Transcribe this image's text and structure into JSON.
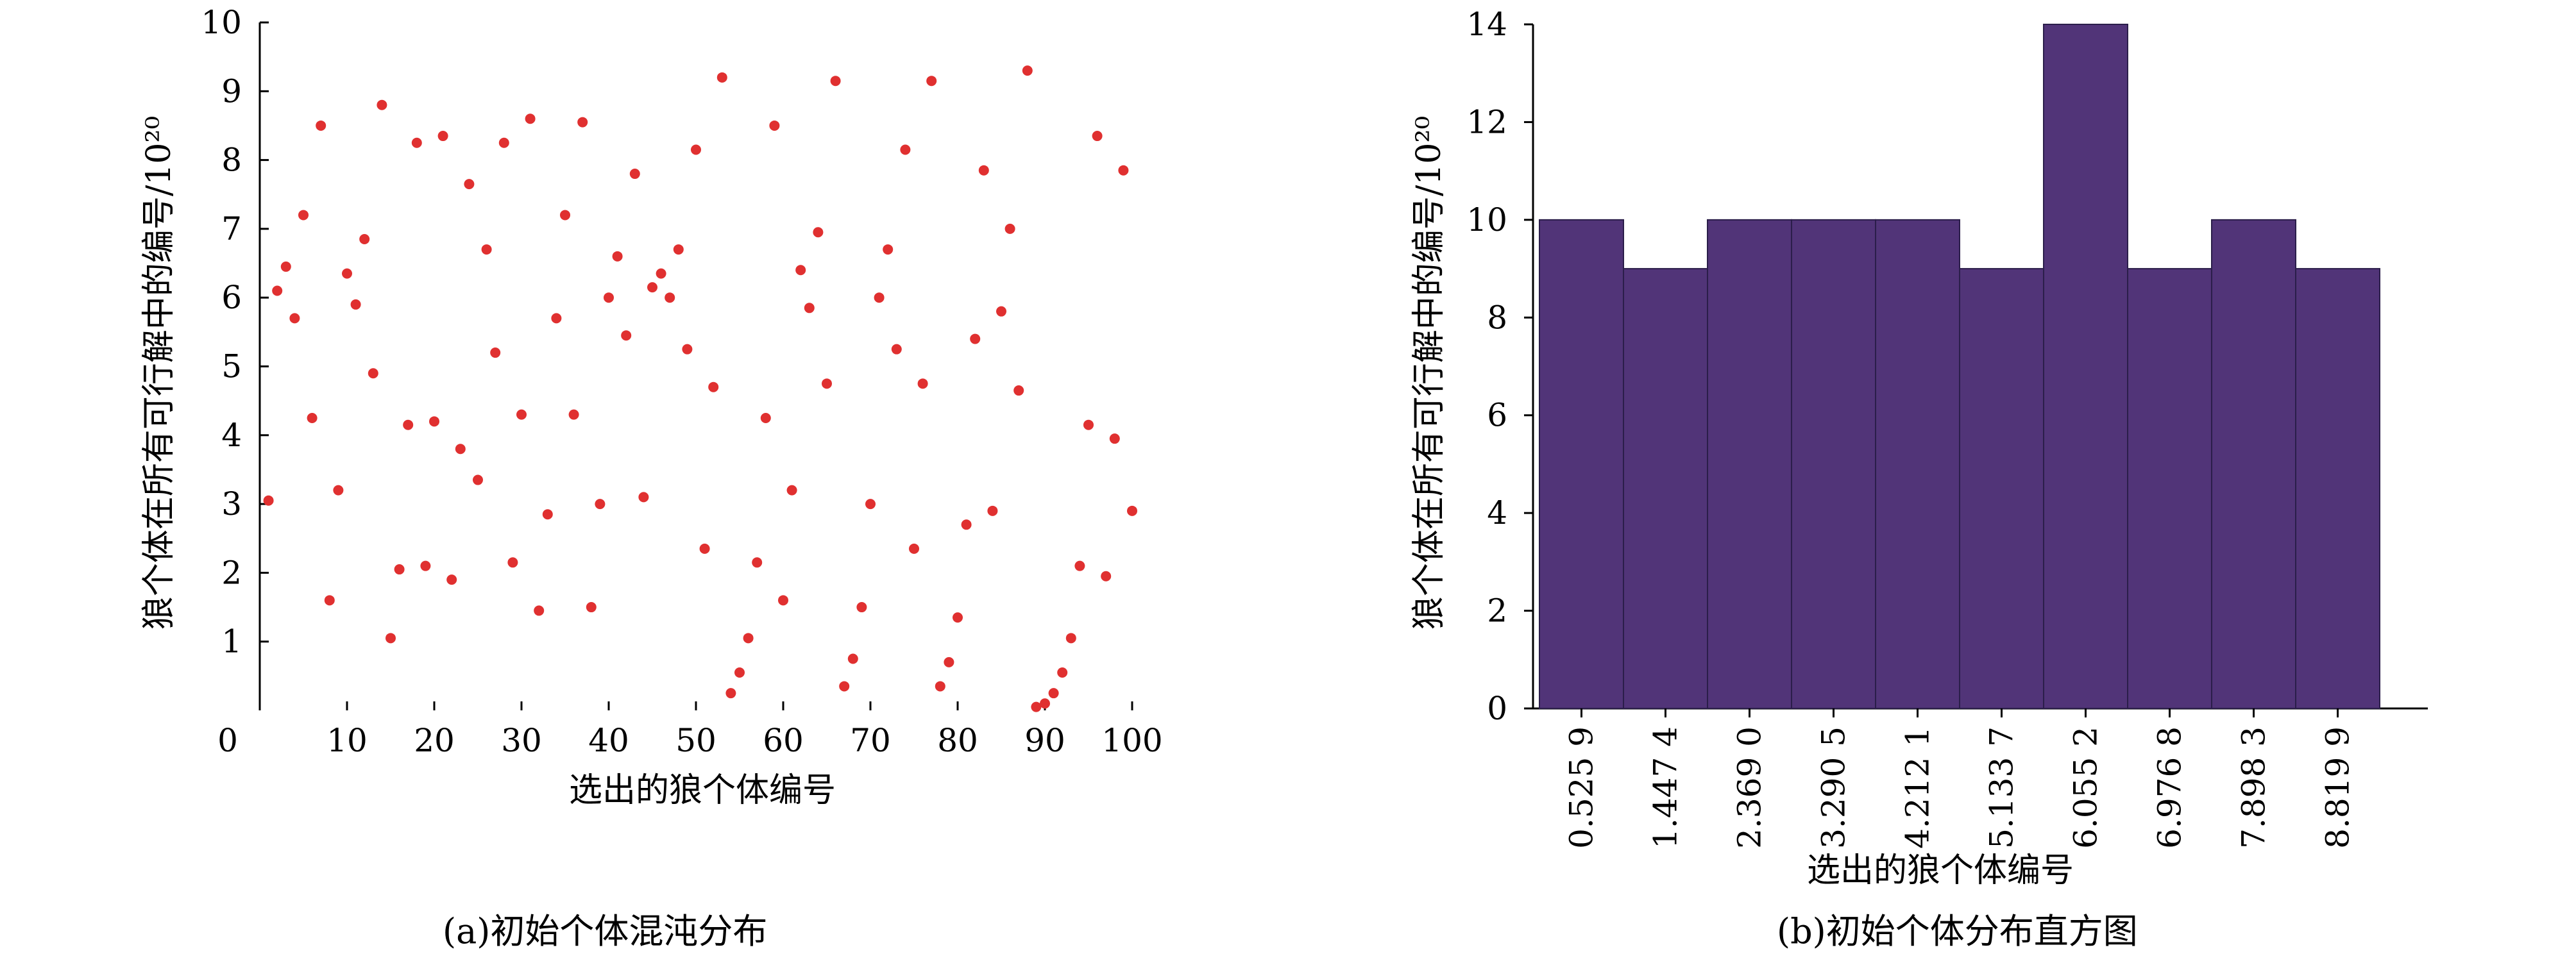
{
  "captions": {
    "left": "(a)初始个体混沌分布",
    "right": "(b)初始个体分布直方图"
  },
  "colors": {
    "scatter": "#e03030",
    "bar": "#513478"
  },
  "chart_data": [
    {
      "type": "scatter",
      "xlabel": "选出的狼个体编号",
      "ylabel": "狼个体在所有可行解中的编号/10²⁰",
      "xlim": [
        0,
        100
      ],
      "ylim": [
        0,
        10
      ],
      "x_ticks": [
        "0",
        "10",
        "20",
        "30",
        "40",
        "50",
        "60",
        "70",
        "80",
        "90",
        "100"
      ],
      "y_ticks": [
        "1",
        "2",
        "3",
        "4",
        "5",
        "6",
        "7",
        "8",
        "9",
        "10"
      ],
      "x": [
        1,
        2,
        3,
        4,
        5,
        6,
        7,
        8,
        9,
        10,
        11,
        12,
        13,
        14,
        15,
        16,
        17,
        18,
        19,
        20,
        21,
        22,
        23,
        24,
        25,
        26,
        27,
        28,
        29,
        30,
        31,
        32,
        33,
        34,
        35,
        36,
        37,
        38,
        39,
        40,
        41,
        42,
        43,
        44,
        45,
        46,
        47,
        48,
        49,
        50,
        51,
        52,
        53,
        54,
        55,
        56,
        57,
        58,
        59,
        60,
        61,
        62,
        63,
        64,
        65,
        66,
        67,
        68,
        69,
        70,
        71,
        72,
        73,
        74,
        75,
        76,
        77,
        78,
        79,
        80,
        81,
        82,
        83,
        84,
        85,
        86,
        87,
        88,
        89,
        90,
        91,
        92,
        93,
        94,
        95,
        96,
        97,
        98,
        99,
        100
      ],
      "y": [
        3.05,
        6.1,
        6.45,
        5.7,
        7.2,
        4.25,
        8.5,
        1.6,
        3.2,
        6.35,
        5.9,
        6.85,
        4.9,
        8.8,
        1.05,
        2.05,
        4.15,
        8.25,
        2.1,
        4.2,
        8.35,
        1.9,
        3.8,
        7.65,
        3.35,
        6.7,
        5.2,
        8.25,
        2.15,
        4.3,
        8.6,
        1.45,
        2.85,
        5.7,
        7.2,
        4.3,
        8.55,
        1.5,
        3.0,
        6.0,
        6.6,
        5.45,
        7.8,
        3.1,
        6.15,
        6.35,
        6.0,
        6.7,
        5.25,
        8.15,
        2.35,
        4.7,
        9.2,
        0.25,
        0.55,
        1.05,
        2.15,
        4.25,
        8.5,
        1.6,
        3.2,
        6.4,
        5.85,
        6.95,
        4.75,
        9.15,
        0.35,
        0.75,
        1.5,
        3.0,
        6.0,
        6.7,
        5.25,
        8.15,
        2.35,
        4.75,
        9.15,
        0.35,
        0.7,
        1.35,
        2.7,
        5.4,
        7.85,
        2.9,
        5.8,
        7.0,
        4.65,
        9.3,
        0.05,
        0.1,
        0.25,
        0.55,
        1.05,
        2.1,
        4.15,
        8.35,
        1.95,
        3.95,
        7.85,
        2.9
      ]
    },
    {
      "type": "bar",
      "xlabel": "选出的狼个体编号",
      "ylabel": "狼个体在所有可行解中的编号/10²⁰",
      "ylim": [
        0,
        14
      ],
      "y_ticks": [
        "0",
        "2",
        "4",
        "6",
        "8",
        "10",
        "12",
        "14"
      ],
      "categories": [
        "0.525 9",
        "1.447 4",
        "2.369 0",
        "3.290 5",
        "4.212 1",
        "5.133 7",
        "6.055 2",
        "6.976 8",
        "7.898 3",
        "8.819 9"
      ],
      "values": [
        10,
        9,
        10,
        10,
        10,
        9,
        14,
        9,
        10,
        9
      ]
    }
  ]
}
